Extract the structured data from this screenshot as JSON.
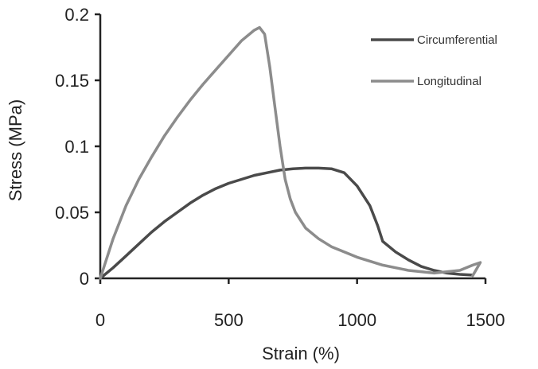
{
  "chart_data": {
    "type": "line",
    "xlabel": "Strain (%)",
    "ylabel": "Stress (MPa)",
    "xlim": [
      0,
      1500
    ],
    "ylim": [
      0,
      0.2
    ],
    "x_ticks": [
      "0",
      "500",
      "1000",
      "1500"
    ],
    "y_ticks": [
      "0",
      "0.05",
      "0.1",
      "0.15",
      "0.2"
    ],
    "grid": false,
    "legend_position": "top-right",
    "series": [
      {
        "name": "Circumferential",
        "color": "#4a4a4a",
        "points": [
          [
            0,
            0
          ],
          [
            50,
            0.008
          ],
          [
            100,
            0.017
          ],
          [
            150,
            0.026
          ],
          [
            200,
            0.035
          ],
          [
            250,
            0.043
          ],
          [
            300,
            0.05
          ],
          [
            350,
            0.057
          ],
          [
            400,
            0.063
          ],
          [
            450,
            0.068
          ],
          [
            500,
            0.072
          ],
          [
            550,
            0.075
          ],
          [
            600,
            0.078
          ],
          [
            650,
            0.08
          ],
          [
            700,
            0.082
          ],
          [
            750,
            0.083
          ],
          [
            800,
            0.0835
          ],
          [
            850,
            0.0835
          ],
          [
            900,
            0.083
          ],
          [
            950,
            0.08
          ],
          [
            1000,
            0.07
          ],
          [
            1050,
            0.055
          ],
          [
            1080,
            0.04
          ],
          [
            1100,
            0.028
          ],
          [
            1150,
            0.02
          ],
          [
            1200,
            0.014
          ],
          [
            1250,
            0.009
          ],
          [
            1300,
            0.006
          ],
          [
            1350,
            0.004
          ],
          [
            1400,
            0.003
          ],
          [
            1450,
            0.0025
          ]
        ]
      },
      {
        "name": "Longitudinal",
        "color": "#8c8c8c",
        "points": [
          [
            0,
            0
          ],
          [
            50,
            0.03
          ],
          [
            100,
            0.055
          ],
          [
            150,
            0.075
          ],
          [
            200,
            0.092
          ],
          [
            250,
            0.108
          ],
          [
            300,
            0.122
          ],
          [
            350,
            0.135
          ],
          [
            400,
            0.147
          ],
          [
            450,
            0.158
          ],
          [
            500,
            0.169
          ],
          [
            550,
            0.18
          ],
          [
            600,
            0.188
          ],
          [
            620,
            0.19
          ],
          [
            640,
            0.185
          ],
          [
            660,
            0.16
          ],
          [
            680,
            0.13
          ],
          [
            700,
            0.1
          ],
          [
            720,
            0.075
          ],
          [
            740,
            0.06
          ],
          [
            760,
            0.05
          ],
          [
            800,
            0.038
          ],
          [
            850,
            0.03
          ],
          [
            900,
            0.024
          ],
          [
            950,
            0.02
          ],
          [
            1000,
            0.016
          ],
          [
            1050,
            0.013
          ],
          [
            1100,
            0.01
          ],
          [
            1150,
            0.008
          ],
          [
            1200,
            0.006
          ],
          [
            1300,
            0.004
          ],
          [
            1400,
            0.006
          ],
          [
            1450,
            0.01
          ],
          [
            1480,
            0.012
          ],
          [
            1450,
            0.002
          ]
        ]
      }
    ]
  }
}
